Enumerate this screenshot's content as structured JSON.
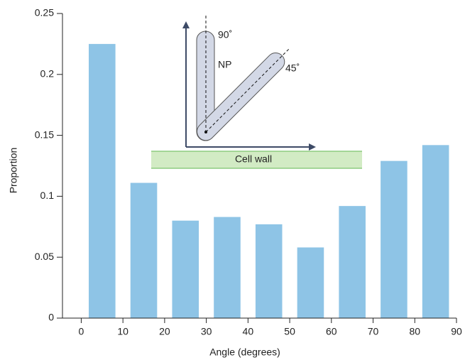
{
  "chart_data": {
    "type": "histogram",
    "x_label": "Angle (degrees)",
    "y_label": "Proportion",
    "bins": [
      0,
      10,
      20,
      30,
      40,
      50,
      60,
      70,
      80,
      90
    ],
    "values": [
      0.225,
      0.111,
      0.08,
      0.083,
      0.077,
      0.058,
      0.092,
      0.129,
      0.142
    ],
    "color": "#8ec4e6",
    "xlim": [
      -4.5,
      90
    ],
    "xticks": [
      0,
      10,
      20,
      30,
      40,
      50,
      60,
      70,
      80,
      90
    ],
    "ylim": [
      0,
      0.25
    ],
    "yticks": [
      0,
      0.05,
      0.1,
      0.15,
      0.2,
      0.25
    ],
    "grid": false,
    "inset": {
      "angle_vertical": "90˚",
      "particle": "NP",
      "angle_diagonal": "45˚",
      "surface": "Cell wall"
    }
  }
}
